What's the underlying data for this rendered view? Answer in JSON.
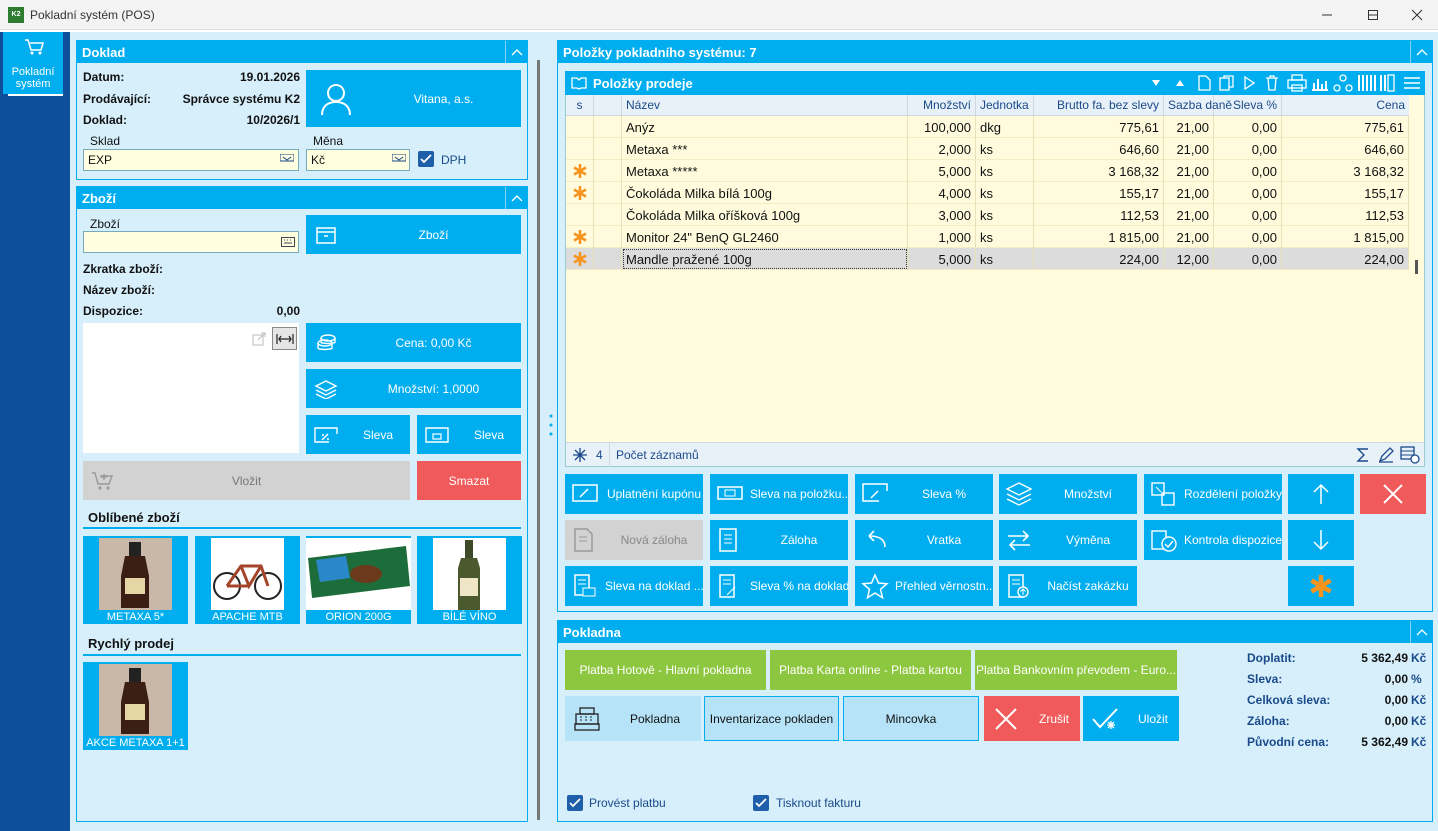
{
  "window": {
    "title": "Pokladní systém (POS)",
    "logo": "K2"
  },
  "sidebar": {
    "items": [
      {
        "label_1": "Pokladní",
        "label_2": "systém",
        "icon": "cart-icon"
      }
    ]
  },
  "doklad": {
    "title": "Doklad",
    "datum_label": "Datum:",
    "datum": "19.01.2026",
    "prodavajici_label": "Prodávající:",
    "prodavajici": "Správce systému K2",
    "doklad_label": "Doklad:",
    "doklad": "10/2026/1",
    "customer_button": "Vitana, a.s.",
    "sklad_label": "Sklad",
    "sklad": "EXP",
    "mena_label": "Měna",
    "mena": "Kč",
    "dph_label": "DPH"
  },
  "zbozi": {
    "title": "Zboží",
    "zbozi_label": "Zboží",
    "zbozi_value": "",
    "zbozi_button": "Zboží",
    "zkratka_label": "Zkratka zboží:",
    "nazev_label": "Název zboží:",
    "dispozice_label": "Dispozice:",
    "dispozice": "0,00",
    "cena_button": "Cena: 0,00 Kč",
    "mnozstvi_button": "Množství: 1,0000",
    "sleva1_button": "Sleva",
    "sleva2_button": "Sleva",
    "vlozit_button": "Vložit",
    "smazat_button": "Smazat",
    "oblibene_title": "Oblíbené zboží",
    "favorites": [
      "METAXA 5*",
      "APACHE MTB",
      "ORION 200G",
      "BÍLÉ VÍNO"
    ],
    "rychly_title": "Rychlý prodej",
    "quick": [
      "AKCE METAXA 1+1"
    ]
  },
  "polozky": {
    "title": "Položky pokladního systému: 7",
    "grid_title": "Položky prodeje",
    "columns": [
      "s",
      "Název",
      "Množství",
      "Jednotka",
      "Brutto fa. bez slevy",
      "Sazba daně",
      "Sleva %",
      "Cena"
    ],
    "rows": [
      {
        "star": false,
        "name": "Anýz",
        "qty": "100,000",
        "unit": "dkg",
        "brutto": "775,61",
        "tax": "21,00",
        "disc": "0,00",
        "price": "775,61"
      },
      {
        "star": false,
        "name": "Metaxa ***",
        "qty": "2,000",
        "unit": "ks",
        "brutto": "646,60",
        "tax": "21,00",
        "disc": "0,00",
        "price": "646,60"
      },
      {
        "star": true,
        "name": "Metaxa *****",
        "qty": "5,000",
        "unit": "ks",
        "brutto": "3 168,32",
        "tax": "21,00",
        "disc": "0,00",
        "price": "3 168,32"
      },
      {
        "star": true,
        "name": "Čokoláda Milka bílá 100g",
        "qty": "4,000",
        "unit": "ks",
        "brutto": "155,17",
        "tax": "21,00",
        "disc": "0,00",
        "price": "155,17"
      },
      {
        "star": false,
        "name": "Čokoláda Milka oříšková 100g",
        "qty": "3,000",
        "unit": "ks",
        "brutto": "112,53",
        "tax": "21,00",
        "disc": "0,00",
        "price": "112,53"
      },
      {
        "star": true,
        "name": "Monitor 24\" BenQ GL2460",
        "qty": "1,000",
        "unit": "ks",
        "brutto": "1 815,00",
        "tax": "21,00",
        "disc": "0,00",
        "price": "1 815,00"
      },
      {
        "star": true,
        "name": "Mandle pražené 100g",
        "qty": "5,000",
        "unit": "ks",
        "brutto": "224,00",
        "tax": "12,00",
        "disc": "0,00",
        "price": "224,00"
      }
    ],
    "footer_count": "4",
    "footer_label": "Počet záznamů",
    "actions": [
      "Uplatnění kupónu",
      "Sleva na položku...",
      "Sleva %",
      "Množství",
      "Rozdělení položky",
      "Nová záloha",
      "Záloha",
      "Vratka",
      "Výměna",
      "Kontrola dispozice",
      "Sleva na doklad ...",
      "Sleva % na doklad",
      "Přehled věrnostn...",
      "Načíst zakázku"
    ]
  },
  "pokladna": {
    "title": "Pokladna",
    "pay1": "Platba Hotově - Hlavní pokladna",
    "pay2": "Platba Karta online - Platba kartou",
    "pay3": "Platba Bankovním převodem - Euro...",
    "pokladna_button": "Pokladna",
    "inventarizace_button": "Inventarizace pokladen",
    "mincovka_button": "Mincovka",
    "zrusit_button": "Zrušit",
    "ulozit_button": "Uložit",
    "doplatit_label": "Doplatit:",
    "doplatit": "5 362,49",
    "doplatit_cur": "Kč",
    "sleva_label": "Sleva:",
    "sleva": "0,00",
    "sleva_cur": "%",
    "celkova_label": "Celková sleva:",
    "celkova": "0,00",
    "celkova_cur": "Kč",
    "zaloha_label": "Záloha:",
    "zaloha": "0,00",
    "zaloha_cur": "Kč",
    "puvodni_label": "Původní cena:",
    "puvodni": "5 362,49",
    "puvodni_cur": "Kč",
    "provest_label": "Provést platbu",
    "tisknout_label": "Tisknout fakturu"
  },
  "colors": {
    "accent": "#00aeef",
    "sidebar": "#0d4f9b",
    "panel": "#d6effb",
    "pay": "#8dc63f",
    "danger": "#f05a5a",
    "star": "#f7941d"
  }
}
